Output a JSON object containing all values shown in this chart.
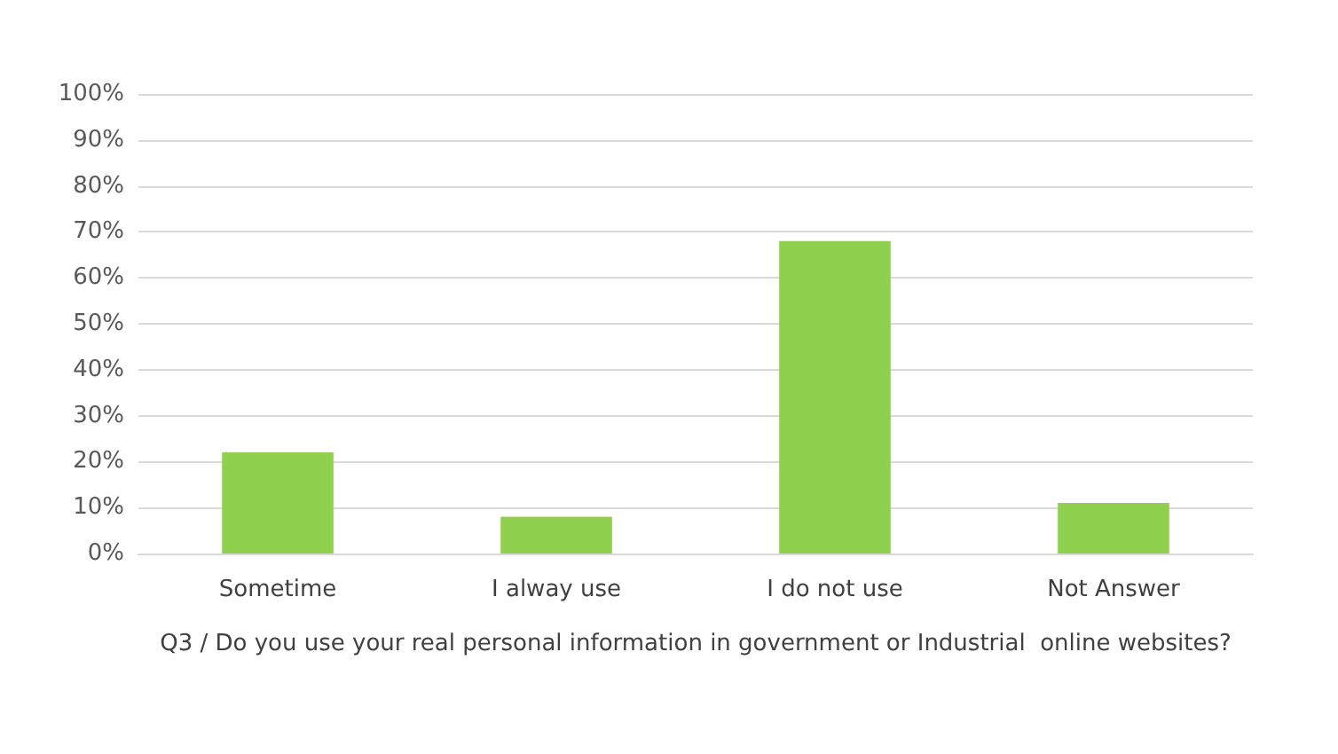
{
  "chart_data": {
    "type": "bar",
    "categories": [
      "Sometime",
      "I alway use",
      "I do not use",
      "Not Answer"
    ],
    "values": [
      22,
      8,
      68,
      11
    ],
    "color": "#8fd14f",
    "xlabel": "Q3 / Do you use your real personal information in government or Industrial  online websites?",
    "ylim": [
      0,
      100
    ],
    "yticks": [
      {
        "value": 0,
        "label": "0%"
      },
      {
        "value": 10,
        "label": "10%"
      },
      {
        "value": 20,
        "label": "20%"
      },
      {
        "value": 30,
        "label": "30%"
      },
      {
        "value": 40,
        "label": "40%"
      },
      {
        "value": 50,
        "label": "50%"
      },
      {
        "value": 60,
        "label": "60%"
      },
      {
        "value": 70,
        "label": "70%"
      },
      {
        "value": 80,
        "label": "80%"
      },
      {
        "value": 90,
        "label": "90%"
      },
      {
        "value": 100,
        "label": "100%"
      }
    ],
    "grid": "y"
  }
}
